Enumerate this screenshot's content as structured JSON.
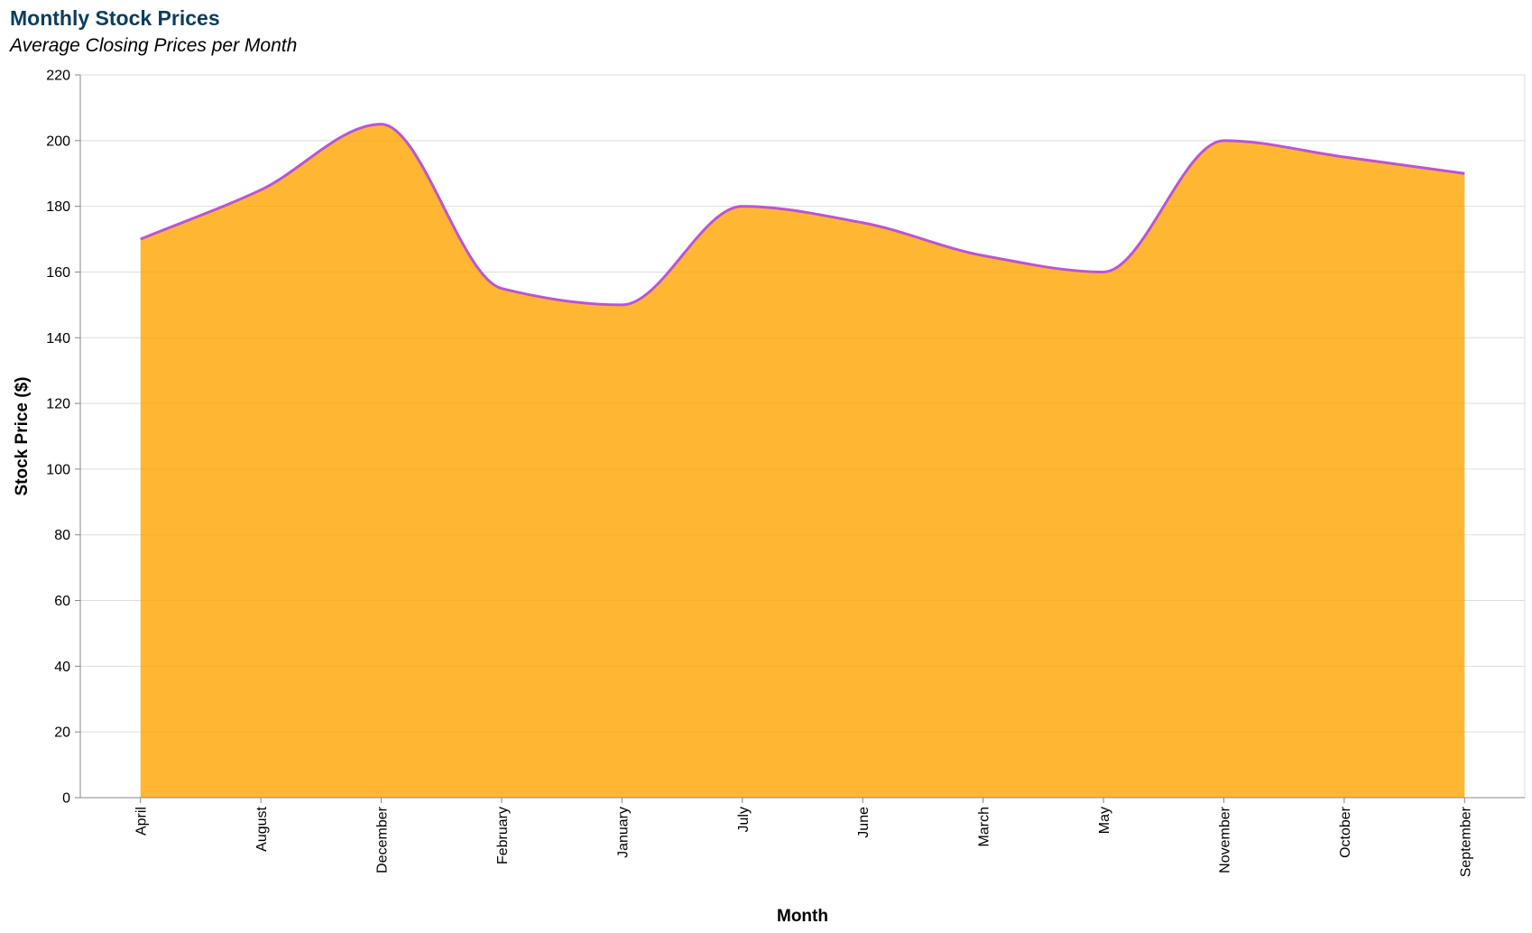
{
  "chart_data": {
    "type": "area",
    "title": "Monthly Stock Prices",
    "subtitle": "Average Closing Prices per Month",
    "xlabel": "Month",
    "ylabel": "Stock Price ($)",
    "categories": [
      "April",
      "August",
      "December",
      "February",
      "January",
      "July",
      "June",
      "March",
      "May",
      "November",
      "October",
      "September"
    ],
    "series": [
      {
        "values": [
          170,
          185,
          205,
          155,
          150,
          180,
          175,
          165,
          160,
          200,
          195,
          190
        ]
      }
    ],
    "ylim": [
      0,
      220
    ],
    "yticks": [
      0,
      20,
      40,
      60,
      80,
      100,
      120,
      140,
      160,
      180,
      200,
      220
    ],
    "grid": true,
    "legend": "none",
    "colors": {
      "area_fill": "#FFA500",
      "line": "#BA55D3",
      "title": "#0a3d5c",
      "grid": "#dddddd",
      "axis": "#888888"
    }
  }
}
